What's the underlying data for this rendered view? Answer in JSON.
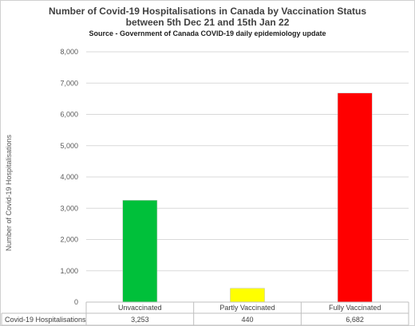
{
  "chart_data": {
    "type": "table",
    "chart_type": "bar",
    "title_line1": "Number of Covid-19 Hospitalisations in Canada by Vaccination Status",
    "title_line2": "between 5th Dec 21 and 15th Jan 22",
    "subtitle": "Source - Government of Canada COVID-19 daily epidemiology update",
    "ylabel": "Number of Covid-19 Hospitalisations",
    "ylim": [
      0,
      8000
    ],
    "yticks": [
      "0",
      "1,000",
      "2,000",
      "3,000",
      "4,000",
      "5,000",
      "6,000",
      "7,000",
      "8,000"
    ],
    "grid": true,
    "legend": "data table below x-axis",
    "categories": [
      "Unvaccinated",
      "Partly Vaccinated",
      "Fully Vaccinated"
    ],
    "series": [
      {
        "name": "Covid-19 Hospitalisations",
        "values": [
          3253,
          440,
          6682
        ],
        "value_labels": [
          "3,253",
          "440",
          "6,682"
        ],
        "colors": [
          "#00c03a",
          "#ffff00",
          "#ff0000"
        ]
      }
    ]
  }
}
